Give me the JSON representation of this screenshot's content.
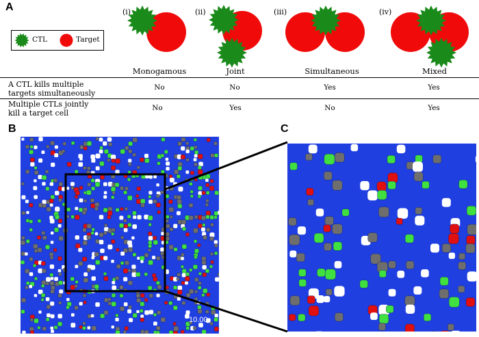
{
  "panels": {
    "a": "A",
    "b": "B",
    "c": "C"
  },
  "legend": {
    "ctl": "CTL",
    "target": "Target"
  },
  "modes": [
    {
      "roman": "(i)",
      "name": "Monogamous"
    },
    {
      "roman": "(ii)",
      "name": "Joint"
    },
    {
      "roman": "(iii)",
      "name": "Simultaneous"
    },
    {
      "roman": "(iv)",
      "name": "Mixed"
    }
  ],
  "rows": [
    {
      "label_line1": "A CTL kills multiple",
      "label_line2": "targets simultaneously",
      "values": [
        "No",
        "No",
        "Yes",
        "Yes"
      ]
    },
    {
      "label_line1": "Multiple CTLs jointly",
      "label_line2": "kill a target cell",
      "values": [
        "No",
        "Yes",
        "No",
        "Yes"
      ]
    }
  ],
  "simulation": {
    "timestamp": "10.00"
  },
  "colors": {
    "ctl": "#1a8a1a",
    "target": "#f00a0a",
    "tissue": "#1f3fe0",
    "green_cell": "#3fe03f",
    "red_cell": "#e01010",
    "gray_cell": "#6e6e6e",
    "background": "#ffffff"
  }
}
